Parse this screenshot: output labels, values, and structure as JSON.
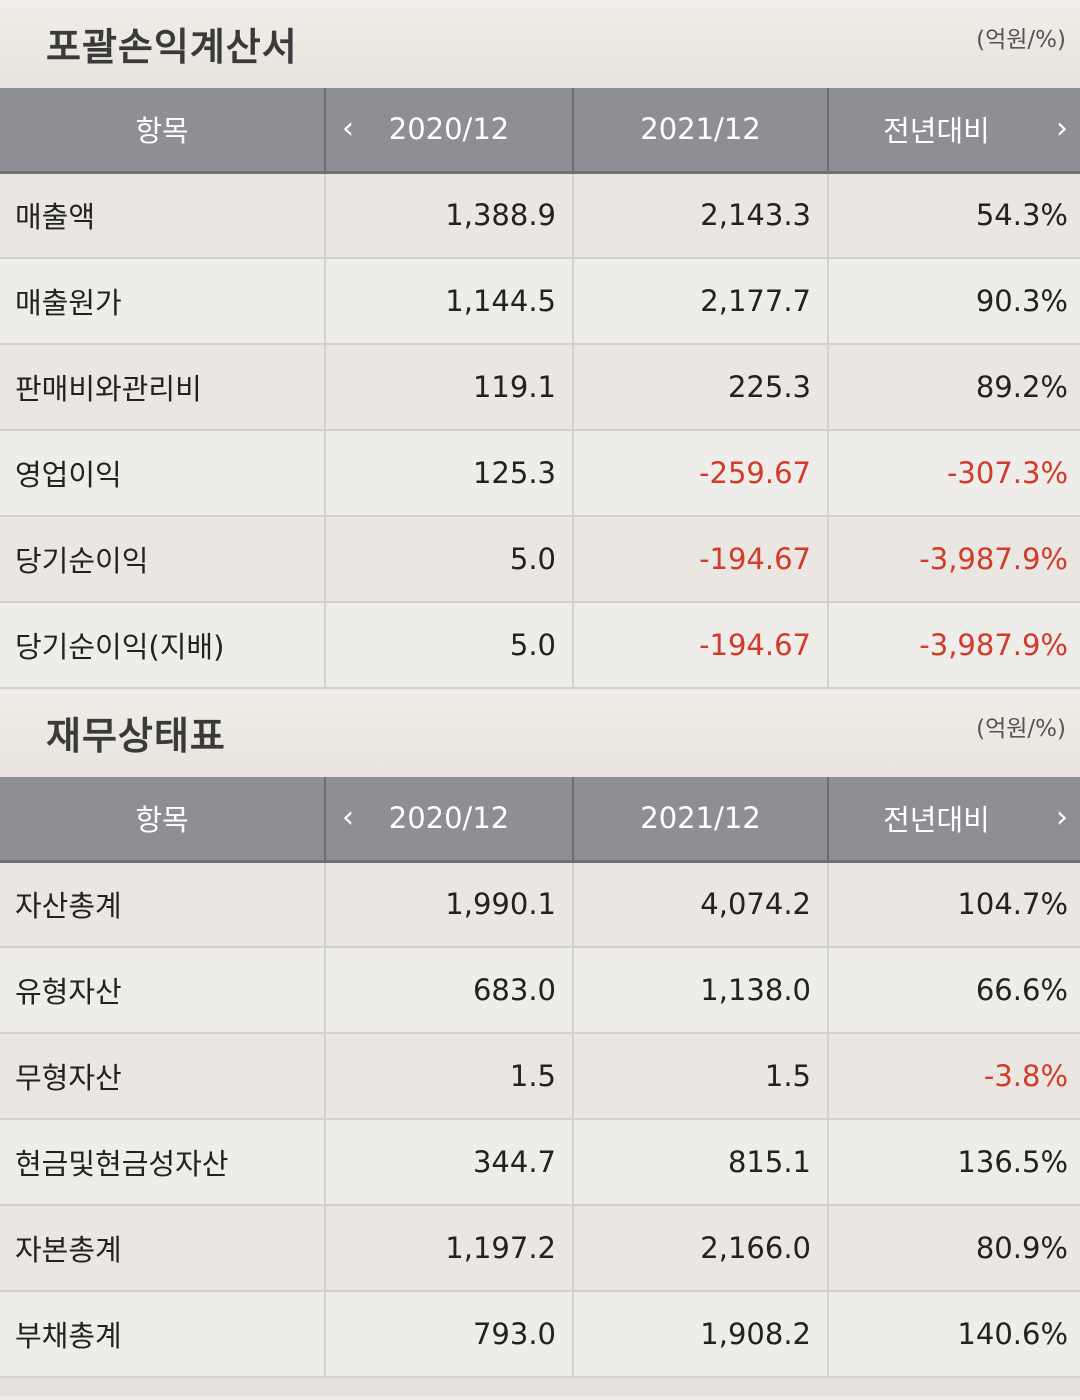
{
  "income": {
    "title": "포괄손익계산서",
    "unit": "(억원/%)",
    "headers": {
      "item": "항목",
      "col1": "2020/12",
      "col2": "2021/12",
      "col3": "전년대비",
      "prev_icon": "chevron-left",
      "next_icon": "chevron-right"
    },
    "rows": [
      {
        "label": "매출액",
        "v1": "1,388.9",
        "v2": "2,143.3",
        "v3": "54.3%"
      },
      {
        "label": "매출원가",
        "v1": "1,144.5",
        "v2": "2,177.7",
        "v3": "90.3%"
      },
      {
        "label": "판매비와관리비",
        "v1": "119.1",
        "v2": "225.3",
        "v3": "89.2%"
      },
      {
        "label": "영업이익",
        "v1": "125.3",
        "v2": "-259.67",
        "v3": "-307.3%"
      },
      {
        "label": "당기순이익",
        "v1": "5.0",
        "v2": "-194.67",
        "v3": "-3,987.9%"
      },
      {
        "label": "당기순이익(지배)",
        "v1": "5.0",
        "v2": "-194.67",
        "v3": "-3,987.9%"
      }
    ]
  },
  "balance": {
    "title": "재무상태표",
    "unit": "(억원/%)",
    "headers": {
      "item": "항목",
      "col1": "2020/12",
      "col2": "2021/12",
      "col3": "전년대비",
      "prev_icon": "chevron-left",
      "next_icon": "chevron-right"
    },
    "rows": [
      {
        "label": "자산총계",
        "v1": "1,990.1",
        "v2": "4,074.2",
        "v3": "104.7%"
      },
      {
        "label": "유형자산",
        "v1": "683.0",
        "v2": "1,138.0",
        "v3": "66.6%"
      },
      {
        "label": "무형자산",
        "v1": "1.5",
        "v2": "1.5",
        "v3": "-3.8%"
      },
      {
        "label": "현금및현금성자산",
        "v1": "344.7",
        "v2": "815.1",
        "v3": "136.5%"
      },
      {
        "label": "자본총계",
        "v1": "1,197.2",
        "v2": "2,166.0",
        "v3": "80.9%"
      },
      {
        "label": "부채총계",
        "v1": "793.0",
        "v2": "1,908.2",
        "v3": "140.6%"
      }
    ]
  },
  "colors": {
    "header_bg": "#8d8f95",
    "negative": "#d23a2a",
    "row_bg": "#efede9"
  }
}
